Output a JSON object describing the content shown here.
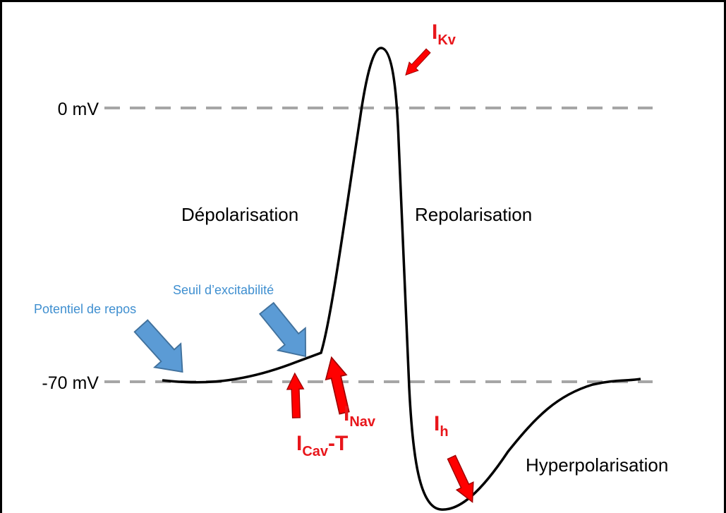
{
  "axis_labels": {
    "zero": "0 mV",
    "rest": "-70 mV"
  },
  "phases": {
    "depolarisation": "Dépolarisation",
    "repolarisation": "Repolarisation",
    "hyperpolarisation": "Hyperpolarisation"
  },
  "annotations": {
    "resting": "Potentiel de repos",
    "threshold": "Seuil d’excitabilité"
  },
  "currents": {
    "kv": {
      "symbol": "I",
      "sub": "Kv"
    },
    "nav": {
      "symbol": "I",
      "sub": "Nav"
    },
    "cav": {
      "symbol": "I",
      "sub": "Cav",
      "suffix": "-T"
    },
    "h": {
      "symbol": "I",
      "sub": "h"
    }
  }
}
